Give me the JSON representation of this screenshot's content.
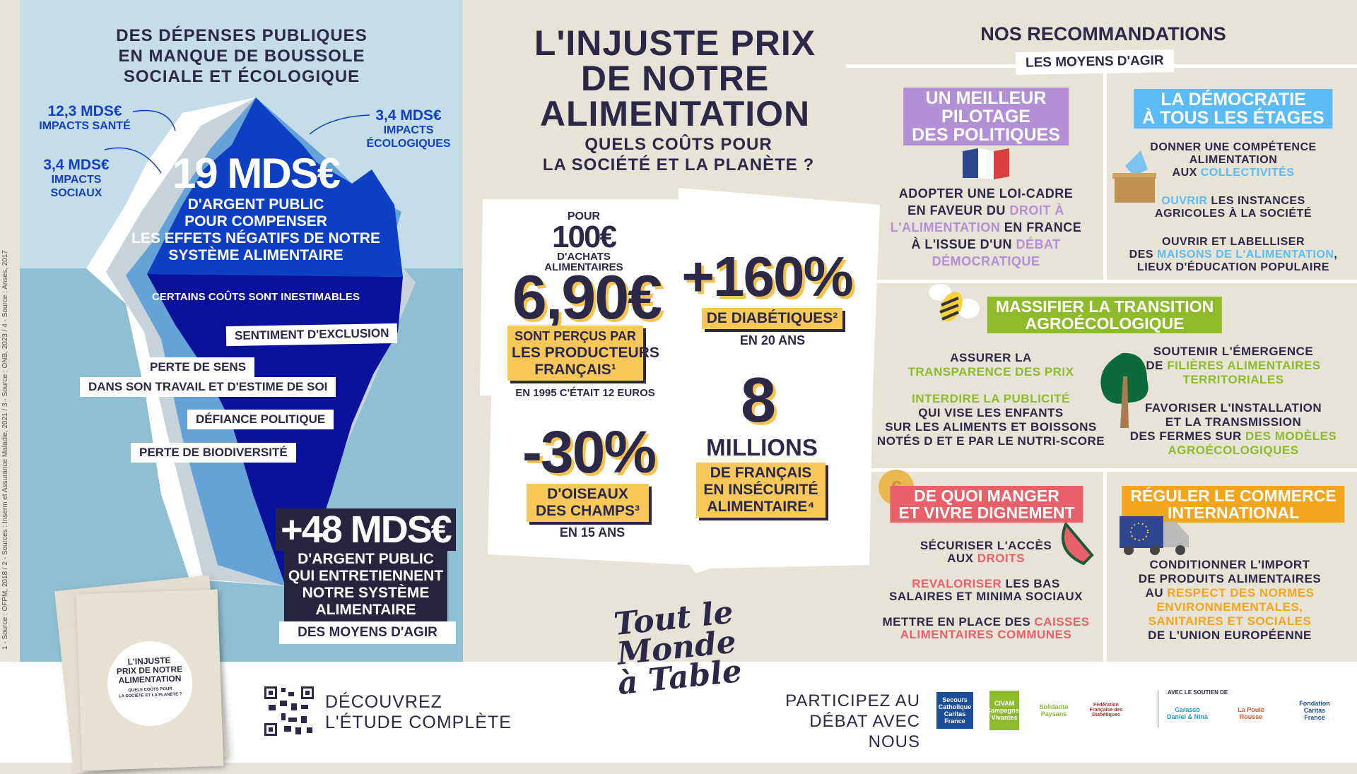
{
  "sources": "1 - Source : OFPM, 2018 / 2 - Sources : Inserm et Assurance Maladie, 2021 / 3 - Source : ONB, 2023 / 4 - Source : Anses, 2017",
  "left": {
    "title": [
      "DES DÉPENSES PUBLIQUES",
      "EN MANQUE DE BOUSSOLE",
      "SOCIALE ET ÉCOLOGIQUE"
    ],
    "health": {
      "amount": "12,3 Mds€",
      "label": "IMPACTS SANTÉ"
    },
    "social": {
      "amount": "3,4 Mds€",
      "label": [
        "IMPACTS",
        "SOCIAUX"
      ]
    },
    "eco": {
      "amount": "3,4 Mds€",
      "label": [
        "IMPACTS",
        "ÉCOLOGIQUES"
      ]
    },
    "main_amount": "19 Mds€",
    "main_text": [
      "D'ARGENT PUBLIC",
      "POUR COMPENSER",
      "LES EFFETS NÉGATIFS DE NOTRE",
      "SYSTÈME ALIMENTAIRE"
    ],
    "inestimable": "CERTAINS COÛTS SONT INESTIMABLES",
    "tags": [
      "SENTIMENT D'EXCLUSION",
      "PERTE DE SENS",
      "DANS SON TRAVAIL ET D'ESTIME DE SOI",
      "DÉFIANCE POLITIQUE",
      "PERTE DE BIODIVERSITÉ"
    ],
    "plus_amount": "+48 Mds€",
    "plus_text": [
      "D'ARGENT PUBLIC",
      "QUI ENTRETIENNENT",
      "NOTRE SYSTÈME",
      "ALIMENTAIRE"
    ],
    "plus_tag": "DES MOYENS D'AGIR"
  },
  "center": {
    "title": [
      "L'INJUSTE PRIX",
      "DE NOTRE",
      "ALIMENTATION"
    ],
    "subtitle": [
      "QUELS COÛTS POUR",
      "LA SOCIÉTÉ ET LA PLANÈTE ?"
    ],
    "stat1": {
      "pre": "POUR",
      "base": "100€",
      "base_label": [
        "D'ACHATS",
        "ALIMENTAIRES"
      ],
      "value": "6,90€",
      "box": [
        "SONT PERÇUS PAR",
        "LES PRODUCTEURS",
        "FRANÇAIS¹"
      ],
      "note": "EN 1995 C'ÉTAIT 12 EUROS"
    },
    "stat2": {
      "value": "+160%",
      "box": "DE DIABÉTIQUES²",
      "note": "EN 20 ANS"
    },
    "stat3": {
      "value": "-30%",
      "box": [
        "D'OISEAUX",
        "DES CHAMPS³"
      ],
      "note": "EN 15 ANS"
    },
    "stat4": {
      "value": "8",
      "unit": "MILLIONS",
      "box": [
        "DE FRANÇAIS",
        "EN INSÉCURITÉ",
        "ALIMENTAIRE⁴"
      ]
    },
    "logo_text": "Tout le Monde à Table"
  },
  "right": {
    "title": "NOS RECOMMANDATIONS",
    "subtitle": "LES MOYENS D'AGIR",
    "colors": {
      "purple": "#b38fd6",
      "blue": "#5bbcf5",
      "green": "#8dbb2c",
      "red": "#e8606a",
      "orange": "#f2a51d"
    },
    "p1": {
      "tag": [
        "UN MEILLEUR",
        "PILOTAGE",
        "DES POLITIQUES"
      ],
      "t": [
        "ADOPTER UNE LOI-CADRE",
        "EN FAVEUR DU ",
        "DROIT À",
        "L'ALIMENTATION",
        " EN FRANCE",
        "À L'ISSUE D'UN ",
        "DÉBAT",
        "DÉMOCRATIQUE"
      ]
    },
    "p2": {
      "tag": [
        "LA DÉMOCRATIE",
        "À TOUS LES ÉTAGES"
      ],
      "t": [
        "DONNER UNE COMPÉTENCE",
        "ALIMENTATION",
        "AUX ",
        "COLLECTIVITÉS",
        "OUVRIR",
        " LES INSTANCES",
        "AGRICOLES À LA SOCIÉTÉ",
        "OUVRIR ET LABELLISER",
        "DES ",
        "MAISONS DE L'ALIMENTATION",
        ",",
        "LIEUX D'ÉDUCATION POPULAIRE"
      ]
    },
    "p3": {
      "tag": [
        "MASSIFIER LA TRANSITION",
        "AGROÉCOLOGIQUE"
      ],
      "t": [
        "ASSURER LA",
        "TRANSPARENCE DES PRIX",
        "INTERDIRE LA PUBLICITÉ",
        "QUI VISE LES ENFANTS",
        "SUR LES ALIMENTS ET BOISSONS",
        "NOTÉS D ET E PAR LE NUTRI-SCORE",
        "SOUTENIR L'ÉMERGENCE",
        "DE ",
        "FILIÈRES ALIMENTAIRES",
        "TERRITORIALES",
        "FAVORISER L'INSTALLATION",
        "ET LA TRANSMISSION",
        "DES FERMES SUR ",
        "DES MODÈLES",
        "AGROÉCOLOGIQUES"
      ]
    },
    "p4": {
      "tag": [
        "DE QUOI MANGER",
        "ET VIVRE DIGNEMENT"
      ],
      "t": [
        "SÉCURISER L'ACCÈS",
        "AUX ",
        "DROITS",
        "REVALORISER",
        " LES BAS",
        "SALAIRES ET MINIMA SOCIAUX",
        "METTRE EN PLACE DES ",
        "CAISSES",
        "ALIMENTAIRES COMMUNES"
      ]
    },
    "p5": {
      "tag": [
        "RÉGULER LE COMMERCE",
        "INTERNATIONAL"
      ],
      "t": [
        "CONDITIONNER L'IMPORT",
        "DE PRODUITS ALIMENTAIRES",
        "AU ",
        "RESPECT DES NORMES",
        "ENVIRONNEMENTALES,",
        "SANITAIRES ET SOCIALES",
        "DE L'UNION EUROPÉENNE"
      ]
    }
  },
  "bottom": {
    "discover": [
      "DÉCOUVREZ",
      "L'ÉTUDE COMPLÈTE"
    ],
    "booklet": {
      "title": [
        "L'INJUSTE",
        "PRIX DE NOTRE",
        "ALIMENTATION"
      ],
      "subtitle": [
        "QUELS COÛTS POUR",
        "LA SOCIÉTÉ ET LA PLANÈTE ?"
      ]
    },
    "participate": [
      "PARTICIPEZ AU",
      "DÉBAT AVEC NOUS"
    ],
    "support": "AVEC LE SOUTIEN DE",
    "logos": [
      "Secours Catholique Caritas France",
      "CIVAM Campagnes Vivantes",
      "Solidarité Paysans",
      "Fédération Française des Diabétiques",
      "Carasso Daniel & Nina",
      "La Poule Rousse",
      "Fondation Caritas France"
    ]
  }
}
